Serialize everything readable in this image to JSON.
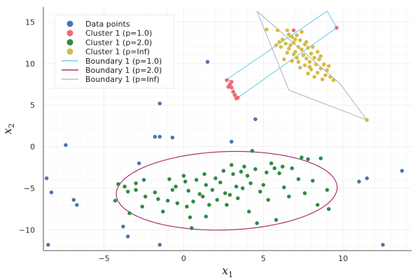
{
  "chart_data": {
    "type": "scatter",
    "xlabel": "x",
    "xlabel_sub": "1",
    "ylabel": "x",
    "ylabel_sub": "2",
    "xlim": [
      -8.8,
      14.3
    ],
    "ylim": [
      -12.5,
      16.8
    ],
    "xticks": [
      -5,
      0,
      5,
      10
    ],
    "yticks": [
      -10,
      -5,
      0,
      5,
      10,
      15
    ],
    "grid": true,
    "legend_position": "top-left",
    "colors": {
      "data": "#4a76ac",
      "p1": "#ed6a74",
      "p2": "#2e8b3e",
      "pinf": "#d4bb43",
      "boundary_p1": "#6ecde8",
      "boundary_p2": "#a8336b",
      "boundary_pinf": "#b8b8b8"
    },
    "legend": [
      {
        "label": "Data points",
        "kind": "marker",
        "color_key": "data"
      },
      {
        "label": "Cluster 1 (p=1.0)",
        "kind": "marker",
        "color_key": "p1"
      },
      {
        "label": "Cluster 1 (p=2.0)",
        "kind": "marker",
        "color_key": "p2"
      },
      {
        "label": "Cluster 1 (p=Inf)",
        "kind": "marker",
        "color_key": "pinf"
      },
      {
        "label": "Boundary 1 (p=1.0)",
        "kind": "line",
        "color_key": "boundary_p1"
      },
      {
        "label": "Boundary 1 (p=2.0)",
        "kind": "line",
        "color_key": "boundary_p2"
      },
      {
        "label": "Boundary 1 (p=Inf)",
        "kind": "line",
        "color_key": "boundary_pinf"
      }
    ],
    "series": [
      {
        "name": "Data points",
        "color_key": "data",
        "points": [
          [
            -8.5,
            -11.8
          ],
          [
            -8.6,
            -3.8
          ],
          [
            -8.3,
            -5.5
          ],
          [
            -7.4,
            0.2
          ],
          [
            -6.9,
            -6.4
          ],
          [
            -6.7,
            -7.0
          ],
          [
            -3.8,
            -9.6
          ],
          [
            -3.5,
            -10.8
          ],
          [
            -2.8,
            -2.0
          ],
          [
            -1.8,
            1.2
          ],
          [
            -1.5,
            1.2
          ],
          [
            -1.5,
            5.2
          ],
          [
            -0.7,
            1.1
          ],
          [
            -1.5,
            -11.8
          ],
          [
            1.5,
            10.2
          ],
          [
            3.0,
            0.6
          ],
          [
            4.5,
            3.3
          ],
          [
            11.0,
            -4.2
          ],
          [
            11.5,
            -3.8
          ],
          [
            13.7,
            -2.9
          ],
          [
            12.5,
            -11.8
          ]
        ]
      },
      {
        "name": "Cluster 1 (p=1.0)",
        "color_key": "p1",
        "points": [
          [
            2.7,
            8.0
          ],
          [
            2.9,
            7.5
          ],
          [
            3.0,
            7.1
          ],
          [
            3.1,
            6.6
          ],
          [
            3.2,
            6.2
          ],
          [
            3.3,
            5.8
          ],
          [
            3.4,
            5.9
          ],
          [
            3.0,
            7.8
          ],
          [
            2.8,
            7.2
          ],
          [
            9.6,
            14.3
          ],
          [
            6.9,
            14.0
          ]
        ]
      },
      {
        "name": "Cluster 1 (p=2.0)",
        "color_key": "p2",
        "points": [
          [
            -4.1,
            -4.5
          ],
          [
            -4.3,
            -6.5
          ],
          [
            -3.5,
            -5.4
          ],
          [
            -3.7,
            -4.8
          ],
          [
            -3.4,
            -8.0
          ],
          [
            -3.0,
            -5.2
          ],
          [
            -2.6,
            -7.2
          ],
          [
            -2.4,
            -6.0
          ],
          [
            -2.5,
            -4.0
          ],
          [
            -1.8,
            -5.5
          ],
          [
            -1.6,
            -6.3
          ],
          [
            -1.3,
            -7.8
          ],
          [
            -1.0,
            -6.5
          ],
          [
            -0.7,
            -5.2
          ],
          [
            -0.5,
            -4.8
          ],
          [
            -0.4,
            -6.8
          ],
          [
            0.0,
            -3.5
          ],
          [
            0.1,
            -4.2
          ],
          [
            0.3,
            -5.3
          ],
          [
            0.2,
            -7.2
          ],
          [
            0.4,
            -8.5
          ],
          [
            0.5,
            -9.8
          ],
          [
            0.6,
            -6.6
          ],
          [
            0.8,
            -4.0
          ],
          [
            1.0,
            -5.7
          ],
          [
            1.2,
            -6.0
          ],
          [
            1.3,
            -3.3
          ],
          [
            1.4,
            -4.6
          ],
          [
            1.6,
            -7.0
          ],
          [
            1.4,
            -8.4
          ],
          [
            1.8,
            -5.2
          ],
          [
            2.0,
            -3.8
          ],
          [
            2.1,
            -6.4
          ],
          [
            2.3,
            -4.3
          ],
          [
            2.5,
            -2.9
          ],
          [
            2.6,
            -5.6
          ],
          [
            2.7,
            -7.0
          ],
          [
            2.9,
            -5.8
          ],
          [
            3.0,
            -2.2
          ],
          [
            3.1,
            -3.3
          ],
          [
            3.3,
            -4.8
          ],
          [
            3.4,
            -6.2
          ],
          [
            3.6,
            -3.0
          ],
          [
            3.7,
            -5.0
          ],
          [
            3.8,
            -2.4
          ],
          [
            4.0,
            -3.5
          ],
          [
            4.1,
            -7.8
          ],
          [
            4.2,
            -4.4
          ],
          [
            4.3,
            -0.5
          ],
          [
            4.5,
            -2.7
          ],
          [
            4.6,
            -9.2
          ],
          [
            4.8,
            -5.4
          ],
          [
            5.0,
            -4.6
          ],
          [
            5.2,
            -3.1
          ],
          [
            5.3,
            -6.4
          ],
          [
            5.5,
            -2.0
          ],
          [
            5.7,
            -2.6
          ],
          [
            5.8,
            -8.8
          ],
          [
            6.0,
            -3.2
          ],
          [
            6.2,
            -2.4
          ],
          [
            6.3,
            -4.9
          ],
          [
            6.6,
            -6.0
          ],
          [
            6.8,
            -2.6
          ],
          [
            7.2,
            -3.9
          ],
          [
            7.4,
            -1.3
          ],
          [
            7.6,
            -5.6
          ],
          [
            7.8,
            -1.5
          ],
          [
            8.1,
            -4.1
          ],
          [
            8.6,
            -1.4
          ],
          [
            9.0,
            -5.2
          ],
          [
            9.1,
            -7.5
          ],
          [
            8.4,
            -7.0
          ],
          [
            -3.0,
            -4.4
          ],
          [
            -0.9,
            -3.9
          ]
        ]
      },
      {
        "name": "Cluster 1 (p=Inf)",
        "color_key": "pinf",
        "points": [
          [
            6.5,
            14.0
          ],
          [
            6.6,
            13.5
          ],
          [
            6.8,
            13.2
          ],
          [
            7.0,
            12.9
          ],
          [
            7.1,
            13.4
          ],
          [
            6.9,
            12.5
          ],
          [
            6.7,
            12.2
          ],
          [
            7.3,
            12.8
          ],
          [
            7.2,
            12.0
          ],
          [
            6.6,
            11.8
          ],
          [
            7.0,
            11.4
          ],
          [
            7.4,
            11.7
          ],
          [
            7.6,
            12.3
          ],
          [
            7.8,
            11.9
          ],
          [
            7.5,
            11.0
          ],
          [
            7.1,
            10.7
          ],
          [
            6.8,
            10.3
          ],
          [
            7.7,
            10.6
          ],
          [
            8.0,
            11.2
          ],
          [
            8.2,
            10.7
          ],
          [
            7.9,
            10.2
          ],
          [
            7.6,
            9.8
          ],
          [
            7.3,
            9.5
          ],
          [
            8.3,
            9.9
          ],
          [
            8.5,
            10.5
          ],
          [
            8.0,
            9.3
          ],
          [
            7.8,
            8.8
          ],
          [
            8.6,
            9.4
          ],
          [
            8.8,
            9.9
          ],
          [
            8.4,
            8.9
          ],
          [
            8.2,
            8.4
          ],
          [
            8.9,
            8.6
          ],
          [
            9.0,
            9.2
          ],
          [
            8.7,
            8.1
          ],
          [
            9.2,
            8.4
          ],
          [
            6.2,
            12.9
          ],
          [
            6.0,
            12.6
          ],
          [
            6.4,
            12.4
          ],
          [
            6.1,
            12.0
          ],
          [
            6.5,
            11.3
          ],
          [
            5.8,
            12.2
          ],
          [
            7.4,
            13.8
          ],
          [
            7.7,
            12.6
          ],
          [
            8.1,
            12.0
          ],
          [
            8.4,
            11.4
          ],
          [
            6.9,
            11.1
          ],
          [
            7.2,
            10.2
          ],
          [
            7.9,
            9.6
          ],
          [
            8.6,
            10.9
          ],
          [
            9.1,
            9.7
          ],
          [
            11.5,
            3.2
          ],
          [
            5.9,
            14.0
          ],
          [
            5.2,
            14.1
          ],
          [
            6.3,
            10.5
          ],
          [
            9.4,
            8.0
          ]
        ]
      }
    ],
    "boundaries": [
      {
        "name": "Boundary 1 (p=1.0)",
        "color_key": "boundary_p1",
        "closed": true,
        "path": [
          [
            2.8,
            8.2
          ],
          [
            9.0,
            16.3
          ],
          [
            9.6,
            14.3
          ],
          [
            3.4,
            5.9
          ],
          [
            2.8,
            8.2
          ]
        ]
      },
      {
        "name": "Boundary 1 (p=2.0)",
        "color_key": "boundary_p2",
        "ellipse": {
          "cx": 2.7,
          "cy": -5.3,
          "rx": 6.95,
          "ry": 4.7,
          "angle_deg": 6
        }
      },
      {
        "name": "Boundary 1 (p=Inf)",
        "color_key": "boundary_pinf",
        "closed": true,
        "path": [
          [
            4.6,
            16.3
          ],
          [
            9.8,
            7.6
          ],
          [
            11.5,
            3.2
          ],
          [
            6.6,
            6.8
          ],
          [
            4.6,
            16.3
          ]
        ]
      }
    ]
  }
}
